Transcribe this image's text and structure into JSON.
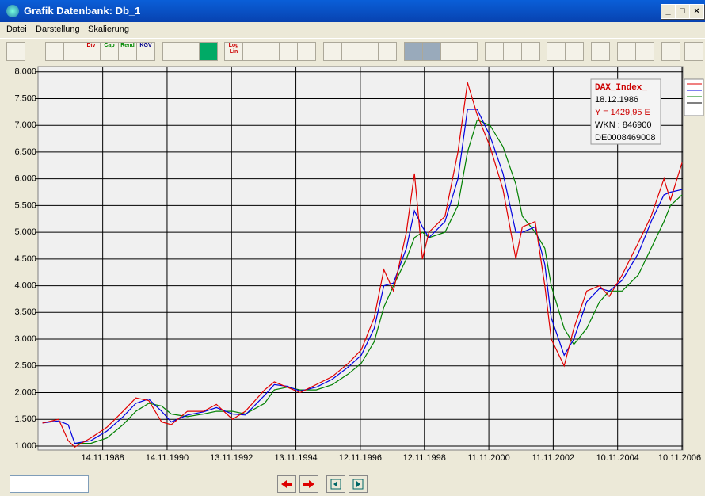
{
  "window": {
    "title": "Grafik  Datenbank: Db_1"
  },
  "menu": [
    "Datei",
    "Darstellung",
    "Skalierung"
  ],
  "toolbar": [
    "Div",
    "Cap",
    "Rend",
    "KGV",
    "Log Lin"
  ],
  "tooltip": {
    "date": "18.12.1986",
    "y": "Y = 1429,95 E",
    "wkn": "WKN : 846900",
    "isin": "DE0008469008"
  },
  "chart_data": {
    "type": "line",
    "x": [
      1987.0,
      1987.5,
      1987.8,
      1988.0,
      1988.5,
      1989.0,
      1989.5,
      1989.9,
      1990.3,
      1990.7,
      1991.0,
      1991.5,
      1992.0,
      1992.4,
      1992.9,
      1993.3,
      1993.9,
      1994.2,
      1994.6,
      1995.0,
      1995.5,
      1996.0,
      1996.5,
      1996.9,
      1997.3,
      1997.6,
      1997.9,
      1998.3,
      1998.55,
      1998.8,
      1999.0,
      1999.5,
      1999.9,
      2000.2,
      2000.5,
      2000.9,
      2001.3,
      2001.7,
      2001.9,
      2002.3,
      2002.6,
      2002.8,
      2003.2,
      2003.5,
      2003.9,
      2004.3,
      2004.6,
      2005.0,
      2005.5,
      2005.9,
      2006.3,
      2006.5,
      2006.86
    ],
    "series": [
      {
        "name": "DAX_Index_",
        "color": "#e00000",
        "values": [
          1430,
          1500,
          1100,
          980,
          1150,
          1350,
          1650,
          1900,
          1850,
          1450,
          1400,
          1650,
          1650,
          1780,
          1500,
          1650,
          2050,
          2200,
          2100,
          2000,
          2150,
          2300,
          2550,
          2800,
          3400,
          4300,
          3900,
          5000,
          6100,
          4500,
          5000,
          5300,
          6500,
          7800,
          7200,
          6600,
          5800,
          4500,
          5100,
          5200,
          4000,
          3000,
          2500,
          3200,
          3900,
          4000,
          3800,
          4200,
          4800,
          5300,
          6000,
          5600,
          6300
        ]
      },
      {
        "color": "#0000e0",
        "values": [
          1430,
          1470,
          1400,
          1050,
          1100,
          1280,
          1550,
          1800,
          1880,
          1650,
          1450,
          1580,
          1640,
          1720,
          1600,
          1580,
          1950,
          2150,
          2120,
          2030,
          2100,
          2250,
          2480,
          2700,
          3200,
          4000,
          4050,
          4700,
          5400,
          5100,
          4900,
          5200,
          6000,
          7300,
          7300,
          6800,
          6100,
          5000,
          5000,
          5100,
          4400,
          3400,
          2700,
          3000,
          3700,
          3950,
          3900,
          4100,
          4600,
          5200,
          5700,
          5750,
          5800
        ]
      },
      {
        "color": "#008000",
        "values": [
          null,
          null,
          null,
          1050,
          1050,
          1150,
          1400,
          1650,
          1800,
          1750,
          1600,
          1550,
          1600,
          1650,
          1650,
          1600,
          1800,
          2050,
          2100,
          2050,
          2050,
          2150,
          2350,
          2550,
          2950,
          3600,
          4000,
          4500,
          4900,
          5000,
          4900,
          5000,
          5500,
          6500,
          7100,
          7000,
          6600,
          5900,
          5300,
          5000,
          4700,
          4000,
          3200,
          2900,
          3200,
          3700,
          3900,
          3900,
          4200,
          4700,
          5200,
          5500,
          5700
        ]
      }
    ],
    "xlim": [
      1986.96,
      2006.86
    ],
    "xticks": [
      {
        "value": 1988.87,
        "label": "14.11.1988"
      },
      {
        "value": 1990.87,
        "label": "14.11.1990"
      },
      {
        "value": 1992.87,
        "label": "13.11.1992"
      },
      {
        "value": 1994.87,
        "label": "13.11.1994"
      },
      {
        "value": 1996.87,
        "label": "12.11.1996"
      },
      {
        "value": 1998.86,
        "label": "12.11.1998"
      },
      {
        "value": 2000.86,
        "label": "11.11.2000"
      },
      {
        "value": 2002.86,
        "label": "11.11.2002"
      },
      {
        "value": 2004.86,
        "label": "10.11.2004"
      },
      {
        "value": 2006.86,
        "label": "10.11.2006"
      }
    ],
    "ylim": [
      940,
      8100
    ],
    "yticks": [
      {
        "value": 1000,
        "label": "1.000"
      },
      {
        "value": 1500,
        "label": "1.500"
      },
      {
        "value": 2000,
        "label": "2.000"
      },
      {
        "value": 2500,
        "label": "2.500"
      },
      {
        "value": 3000,
        "label": "3.000"
      },
      {
        "value": 3500,
        "label": "3.500"
      },
      {
        "value": 4000,
        "label": "4.000"
      },
      {
        "value": 4500,
        "label": "4.500"
      },
      {
        "value": 5000,
        "label": "5.000"
      },
      {
        "value": 5500,
        "label": "5.500"
      },
      {
        "value": 6000,
        "label": "6.000"
      },
      {
        "value": 6500,
        "label": "6.500"
      },
      {
        "value": 7000,
        "label": "7.000"
      },
      {
        "value": 7500,
        "label": "7.500"
      },
      {
        "value": 8000,
        "label": "8.000"
      }
    ],
    "grid": true
  }
}
